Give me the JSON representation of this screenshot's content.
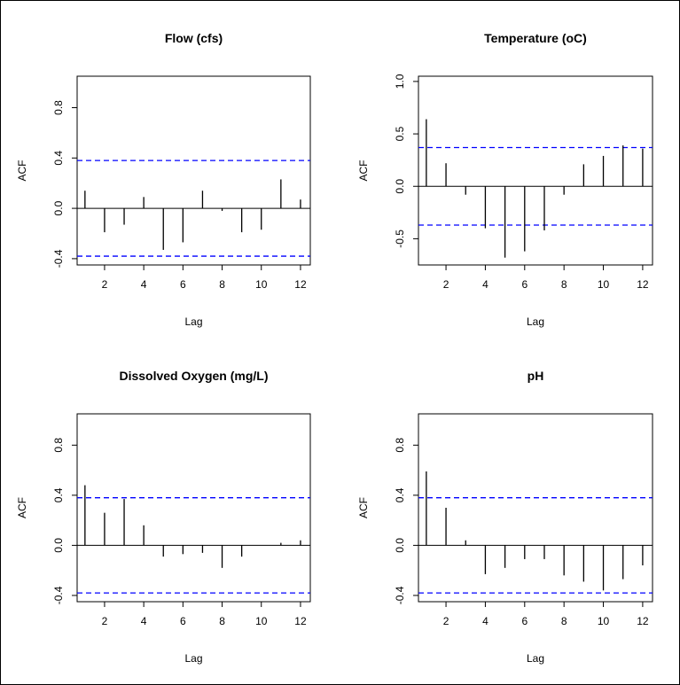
{
  "chart_data": [
    {
      "type": "bar",
      "title": "Flow (cfs)",
      "xlabel": "Lag",
      "ylabel": "ACF",
      "x": [
        1,
        2,
        3,
        4,
        5,
        6,
        7,
        8,
        9,
        10,
        11,
        12
      ],
      "values": [
        0.14,
        -0.19,
        -0.13,
        0.09,
        -0.33,
        -0.27,
        0.14,
        -0.02,
        -0.19,
        -0.17,
        0.23,
        0.07
      ],
      "confidence_bound": 0.38,
      "xlim": [
        0.6,
        12.5
      ],
      "ylim": [
        -0.45,
        1.05
      ],
      "xticks": [
        2,
        4,
        6,
        8,
        10,
        12
      ],
      "xtick_labels": [
        "2",
        "4",
        "6",
        "8",
        "10",
        "12"
      ],
      "yticks": [
        -0.4,
        0.0,
        0.4,
        0.8
      ],
      "ytick_labels": [
        "-0.4",
        "0.0",
        "0.4",
        "0.8"
      ],
      "grid": false,
      "line_color": "#000000",
      "bound_color": "#0000ff"
    },
    {
      "type": "bar",
      "title": "Temperature (oC)",
      "xlabel": "Lag",
      "ylabel": "ACF",
      "x": [
        1,
        2,
        3,
        4,
        5,
        6,
        7,
        8,
        9,
        10,
        11,
        12
      ],
      "values": [
        0.64,
        0.22,
        -0.08,
        -0.4,
        -0.68,
        -0.62,
        -0.42,
        -0.08,
        0.21,
        0.29,
        0.39,
        0.36
      ],
      "confidence_bound": 0.37,
      "xlim": [
        0.6,
        12.5
      ],
      "ylim": [
        -0.75,
        1.05
      ],
      "xticks": [
        2,
        4,
        6,
        8,
        10,
        12
      ],
      "xtick_labels": [
        "2",
        "4",
        "6",
        "8",
        "10",
        "12"
      ],
      "yticks": [
        -0.5,
        0.0,
        0.5,
        1.0
      ],
      "ytick_labels": [
        "-0.5",
        "0.0",
        "0.5",
        "1.0"
      ],
      "grid": false,
      "line_color": "#000000",
      "bound_color": "#0000ff"
    },
    {
      "type": "bar",
      "title": "Dissolved Oxygen (mg/L)",
      "xlabel": "Lag",
      "ylabel": "ACF",
      "x": [
        1,
        2,
        3,
        4,
        5,
        6,
        7,
        8,
        9,
        10,
        11,
        12
      ],
      "values": [
        0.48,
        0.26,
        0.37,
        0.16,
        -0.09,
        -0.07,
        -0.06,
        -0.18,
        -0.09,
        0.0,
        0.02,
        0.04
      ],
      "confidence_bound": 0.38,
      "xlim": [
        0.6,
        12.5
      ],
      "ylim": [
        -0.45,
        1.05
      ],
      "xticks": [
        2,
        4,
        6,
        8,
        10,
        12
      ],
      "xtick_labels": [
        "2",
        "4",
        "6",
        "8",
        "10",
        "12"
      ],
      "yticks": [
        -0.4,
        0.0,
        0.4,
        0.8
      ],
      "ytick_labels": [
        "-0.4",
        "0.0",
        "0.4",
        "0.8"
      ],
      "grid": false,
      "line_color": "#000000",
      "bound_color": "#0000ff"
    },
    {
      "type": "bar",
      "title": "pH",
      "xlabel": "Lag",
      "ylabel": "ACF",
      "x": [
        1,
        2,
        3,
        4,
        5,
        6,
        7,
        8,
        9,
        10,
        11,
        12
      ],
      "values": [
        0.59,
        0.3,
        0.04,
        -0.23,
        -0.18,
        -0.11,
        -0.11,
        -0.24,
        -0.29,
        -0.36,
        -0.27,
        -0.16
      ],
      "confidence_bound": 0.38,
      "xlim": [
        0.6,
        12.5
      ],
      "ylim": [
        -0.45,
        1.05
      ],
      "xticks": [
        2,
        4,
        6,
        8,
        10,
        12
      ],
      "xtick_labels": [
        "2",
        "4",
        "6",
        "8",
        "10",
        "12"
      ],
      "yticks": [
        -0.4,
        0.0,
        0.4,
        0.8
      ],
      "ytick_labels": [
        "-0.4",
        "0.0",
        "0.4",
        "0.8"
      ],
      "grid": false,
      "line_color": "#000000",
      "bound_color": "#0000ff"
    }
  ]
}
